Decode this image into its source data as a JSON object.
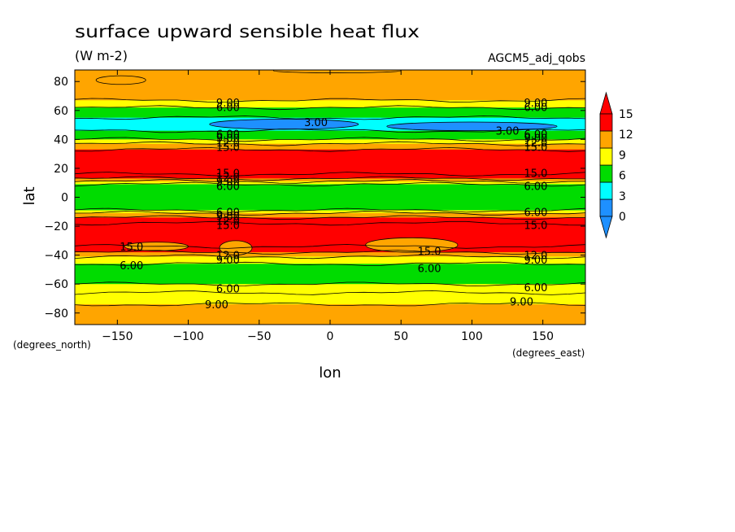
{
  "chart_data": {
    "type": "heatmap",
    "title": "surface upward sensible heat flux",
    "subtitle": "(W m-2)",
    "dataset_label": "AGCM5_adj_qobs",
    "xlabel": "lon",
    "ylabel": "lat",
    "x_units": "(degrees_east)",
    "y_units": "(degrees_north)",
    "xlim": [
      -180,
      180
    ],
    "ylim": [
      -88,
      88
    ],
    "x_ticks": [
      -150,
      -100,
      -50,
      0,
      50,
      100,
      150
    ],
    "x_tick_labels": [
      "−150",
      "−100",
      "−50",
      "0",
      "50",
      "100",
      "150"
    ],
    "y_ticks": [
      80,
      60,
      40,
      20,
      0,
      -20,
      -40,
      -60,
      -80
    ],
    "y_tick_labels": [
      "80",
      "60",
      "40",
      "20",
      "0",
      "−20",
      "−40",
      "−60",
      "−80"
    ],
    "colorbar": {
      "levels": [
        0,
        3,
        6,
        9,
        12,
        15
      ],
      "labels": [
        "0",
        "3",
        "6",
        "9",
        "12",
        "15"
      ],
      "colors": [
        "#1e90ff",
        "#00ffff",
        "#00dc00",
        "#ffff00",
        "#ffa500",
        "#ff0000"
      ],
      "extend": "both"
    },
    "zonal_bands": [
      {
        "lat_from": 88,
        "lat_to": 67,
        "value": 10
      },
      {
        "lat_from": 67,
        "lat_to": 62,
        "value": 7.5
      },
      {
        "lat_from": 62,
        "lat_to": 55,
        "value": 4.5
      },
      {
        "lat_from": 55,
        "lat_to": 46,
        "value": 2
      },
      {
        "lat_from": 46,
        "lat_to": 40,
        "value": 4.5
      },
      {
        "lat_from": 40,
        "lat_to": 37,
        "value": 7.5
      },
      {
        "lat_from": 37,
        "lat_to": 33,
        "value": 10.5
      },
      {
        "lat_from": 33,
        "lat_to": 16,
        "value": 18
      },
      {
        "lat_from": 16,
        "lat_to": 13,
        "value": 13.5
      },
      {
        "lat_from": 13,
        "lat_to": 11,
        "value": 10.5
      },
      {
        "lat_from": 11,
        "lat_to": 9,
        "value": 7.5
      },
      {
        "lat_from": 9,
        "lat_to": -9,
        "value": 4.5
      },
      {
        "lat_from": -9,
        "lat_to": -11,
        "value": 7.5
      },
      {
        "lat_from": -11,
        "lat_to": -14,
        "value": 10.5
      },
      {
        "lat_from": -14,
        "lat_to": -18,
        "value": 13.5
      },
      {
        "lat_from": -18,
        "lat_to": -34,
        "value": 18
      },
      {
        "lat_from": -34,
        "lat_to": -38,
        "value": 13.5
      },
      {
        "lat_from": -38,
        "lat_to": -41,
        "value": 10.5
      },
      {
        "lat_from": -41,
        "lat_to": -46,
        "value": 7.5
      },
      {
        "lat_from": -46,
        "lat_to": -60,
        "value": 4.5
      },
      {
        "lat_from": -60,
        "lat_to": -66,
        "value": 7.5
      },
      {
        "lat_from": -66,
        "lat_to": -74,
        "value": 7.5
      },
      {
        "lat_from": -74,
        "lat_to": -88,
        "value": 10
      }
    ],
    "contour_labels": [
      {
        "text": "9.00",
        "lon": -72,
        "lat": 65.5
      },
      {
        "text": "6.00",
        "lon": -72,
        "lat": 62.5
      },
      {
        "text": "9.00",
        "lon": 145,
        "lat": 65.5
      },
      {
        "text": "6.00",
        "lon": 145,
        "lat": 62.5
      },
      {
        "text": "3.00",
        "lon": -10,
        "lat": 52
      },
      {
        "text": "3.00",
        "lon": 125,
        "lat": 46
      },
      {
        "text": "6.00",
        "lon": -72,
        "lat": 44
      },
      {
        "text": "6.00",
        "lon": 145,
        "lat": 44
      },
      {
        "text": "9.00",
        "lon": -72,
        "lat": 41
      },
      {
        "text": "9.00",
        "lon": 145,
        "lat": 41
      },
      {
        "text": "12.0",
        "lon": -72,
        "lat": 38
      },
      {
        "text": "12.0",
        "lon": 145,
        "lat": 38
      },
      {
        "text": "15.0",
        "lon": -72,
        "lat": 35
      },
      {
        "text": "15.0",
        "lon": 145,
        "lat": 35
      },
      {
        "text": "15.0",
        "lon": -72,
        "lat": 17
      },
      {
        "text": "15.0",
        "lon": 145,
        "lat": 17
      },
      {
        "text": "12.0",
        "lon": -72,
        "lat": 14
      },
      {
        "text": "9.00",
        "lon": -72,
        "lat": 11
      },
      {
        "text": "6.00",
        "lon": -72,
        "lat": 8
      },
      {
        "text": "6.00",
        "lon": 145,
        "lat": 8
      },
      {
        "text": "6.00",
        "lon": -72,
        "lat": -10
      },
      {
        "text": "6.00",
        "lon": 145,
        "lat": -10
      },
      {
        "text": "9.00",
        "lon": -72,
        "lat": -13
      },
      {
        "text": "12.0",
        "lon": -72,
        "lat": -16
      },
      {
        "text": "15.0",
        "lon": -72,
        "lat": -19
      },
      {
        "text": "15.0",
        "lon": 145,
        "lat": -19
      },
      {
        "text": "15.0",
        "lon": -140,
        "lat": -34
      },
      {
        "text": "15.0",
        "lon": 70,
        "lat": -37
      },
      {
        "text": "12.0",
        "lon": -72,
        "lat": -40
      },
      {
        "text": "12.0",
        "lon": 145,
        "lat": -40
      },
      {
        "text": "9.00",
        "lon": -72,
        "lat": -43
      },
      {
        "text": "9.00",
        "lon": 145,
        "lat": -43
      },
      {
        "text": "6.00",
        "lon": -140,
        "lat": -47
      },
      {
        "text": "6.00",
        "lon": 70,
        "lat": -49
      },
      {
        "text": "6.00",
        "lon": -72,
        "lat": -63
      },
      {
        "text": "6.00",
        "lon": 145,
        "lat": -62
      },
      {
        "text": "9.00",
        "lon": -80,
        "lat": -74
      },
      {
        "text": "9.00",
        "lon": 135,
        "lat": -72
      }
    ]
  }
}
